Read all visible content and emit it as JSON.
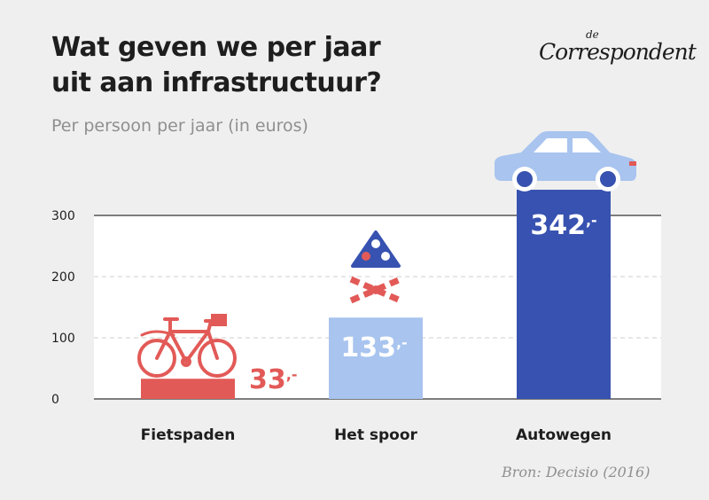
{
  "header": {
    "title_line1": "Wat geven we per jaar",
    "title_line2": "uit aan infrastructuur?",
    "subtitle": "Per persoon per jaar (in euros)"
  },
  "brand": {
    "small": "de",
    "name": "Correspondent"
  },
  "source": "Bron: Decisio (2016)",
  "chart_data": {
    "type": "bar",
    "title": "Wat geven we per jaar uit aan infrastructuur?",
    "subtitle": "Per persoon per jaar (in euros)",
    "categories": [
      "Fietspaden",
      "Het spoor",
      "Autowegen"
    ],
    "values": [
      33,
      133,
      342
    ],
    "value_labels": [
      "33",
      "133",
      "342"
    ],
    "value_suffix": ",-",
    "colors": [
      "#e25a57",
      "#a8c4ef",
      "#3752b0"
    ],
    "value_label_colors": [
      "#e25a57",
      "#ffffff",
      "#ffffff"
    ],
    "icons": [
      "bicycle-icon",
      "railway-crossing-icon",
      "car-icon"
    ],
    "yticks": [
      0,
      100,
      200,
      300
    ],
    "ylim": [
      0,
      300
    ],
    "grid": true,
    "xlabel": "",
    "ylabel": "",
    "source": "Bron: Decisio (2016)"
  }
}
